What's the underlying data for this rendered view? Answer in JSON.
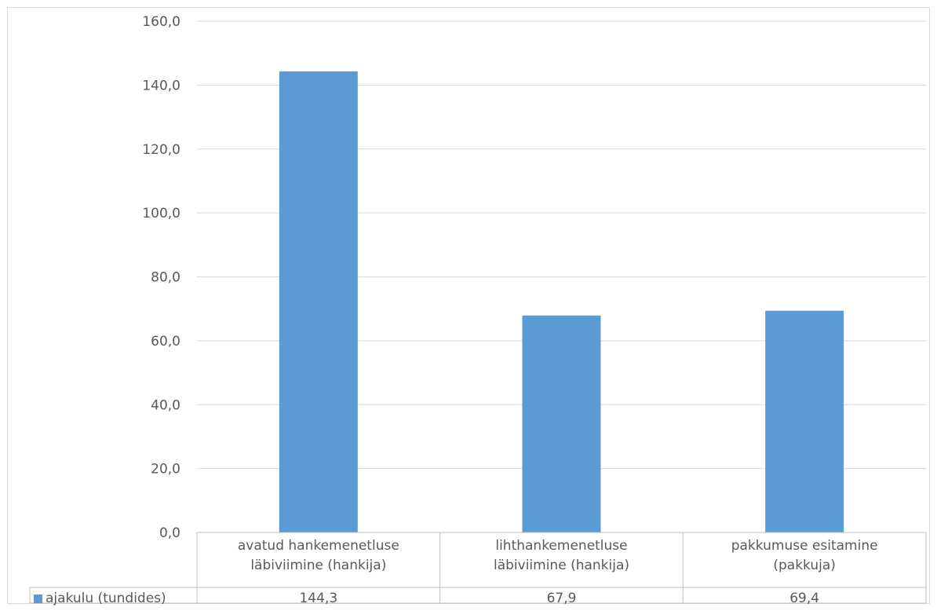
{
  "chart_data": {
    "type": "bar",
    "categories": [
      [
        "avatud hankemenetluse",
        "läbiviimine (hankija)"
      ],
      [
        "lihthankemenetluse",
        "läbiviimine (hankija)"
      ],
      [
        "pakkumuse esitamine",
        "(pakkuja)"
      ]
    ],
    "series": [
      {
        "name": "ajakulu (tundides)",
        "values": [
          144.3,
          67.9,
          69.4
        ],
        "value_labels": [
          "144,3",
          "67,9",
          "69,4"
        ],
        "color": "#5b9bd5"
      }
    ],
    "y_ticks": [
      "0,0",
      "20,0",
      "40,0",
      "60,0",
      "80,0",
      "100,0",
      "120,0",
      "140,0",
      "160,0"
    ],
    "ylim": [
      0,
      160
    ],
    "y_step": 20,
    "grid": true,
    "legend": "data-table",
    "gridline_color": "#d9d9d9",
    "table_line_color": "#bfbfbf"
  }
}
